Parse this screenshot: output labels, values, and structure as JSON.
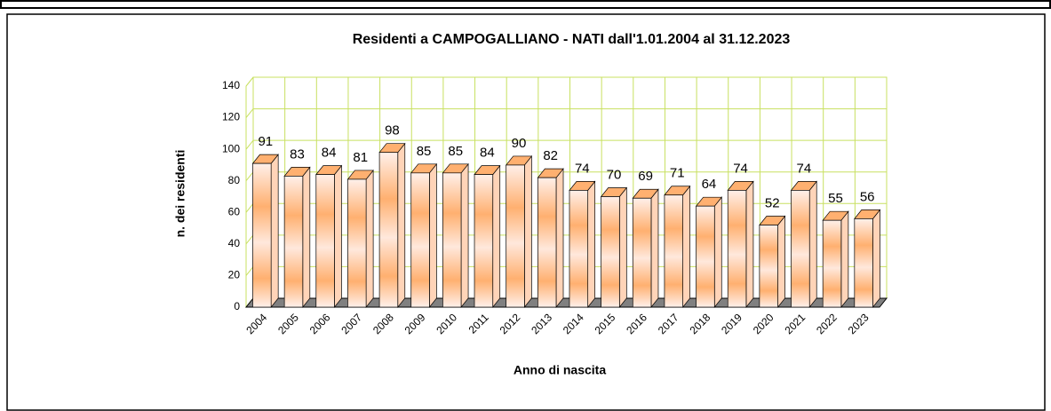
{
  "chart_data": {
    "type": "bar",
    "title": "Residenti a CAMPOGALLIANO - NATI dall'1.01.2004 al 31.12.2023",
    "xlabel": "Anno di nascita",
    "ylabel": "n. dei residenti",
    "categories": [
      "2004",
      "2005",
      "2006",
      "2007",
      "2008",
      "2009",
      "2010",
      "2011",
      "2012",
      "2013",
      "2014",
      "2015",
      "2016",
      "2017",
      "2018",
      "2019",
      "2020",
      "2021",
      "2022",
      "2023"
    ],
    "values": [
      91,
      83,
      84,
      81,
      98,
      85,
      85,
      84,
      90,
      82,
      74,
      70,
      69,
      71,
      64,
      74,
      52,
      74,
      55,
      56
    ],
    "color": "#ffb070",
    "ylim": [
      0,
      140
    ],
    "yticks": [
      0,
      20,
      40,
      60,
      80,
      100,
      120,
      140
    ],
    "grid": true
  }
}
